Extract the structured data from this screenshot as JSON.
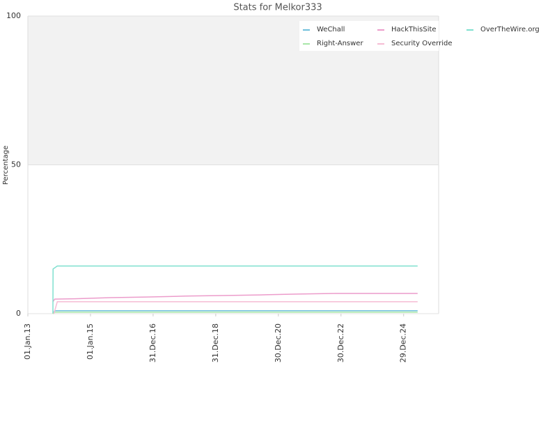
{
  "chart_data": {
    "type": "line",
    "title": "Stats for Melkor333",
    "y_label": "Percentage",
    "xlim": [
      "2013-01-01",
      "2026-02-10"
    ],
    "xticks": [
      {
        "value": "2013-01-01",
        "label": "01.Jan.13"
      },
      {
        "value": "2015-01-01",
        "label": "01.Jan.15"
      },
      {
        "value": "2016-12-31",
        "label": "31.Dec.16"
      },
      {
        "value": "2018-12-31",
        "label": "31.Dec.18"
      },
      {
        "value": "2020-12-30",
        "label": "30.Dec.20"
      },
      {
        "value": "2022-12-30",
        "label": "30.Dec.22"
      },
      {
        "value": "2024-12-29",
        "label": "29.Dec.24"
      }
    ],
    "ylim": [
      0,
      100
    ],
    "yticks": [
      0,
      50,
      100
    ],
    "series": [
      {
        "name": "WeChall",
        "color": "#6fbfdc",
        "x": [
          "2013-10-20",
          "2013-11-10",
          "2025-06-10"
        ],
        "values": [
          0,
          1,
          1
        ]
      },
      {
        "name": "HackThisSite",
        "color": "#ec9ccb",
        "x": [
          "2013-10-20",
          "2013-11-10",
          "2014-07-01",
          "2015-09-01",
          "2016-10-20",
          "2018-01-10",
          "2019-03-20",
          "2020-06-01",
          "2021-08-10",
          "2022-10-15",
          "2025-06-10"
        ],
        "values": [
          4,
          4.9,
          5,
          5.4,
          5.6,
          5.9,
          6.1,
          6.3,
          6.6,
          6.8,
          6.8
        ]
      },
      {
        "name": "OverTheWire.org",
        "color": "#7fe0cf",
        "x": [
          "2013-10-20",
          "2013-10-22",
          "2013-12-10",
          "2025-06-10"
        ],
        "values": [
          0,
          15,
          16,
          16
        ]
      },
      {
        "name": "Right-Answer",
        "color": "#a8e6a8",
        "x": [
          "2013-10-20",
          "2013-11-10",
          "2025-06-10"
        ],
        "values": [
          0,
          0.5,
          0.5
        ]
      },
      {
        "name": "Security Override",
        "color": "#f6bcd4",
        "x": [
          "2013-11-01",
          "2013-12-10",
          "2025-06-10"
        ],
        "values": [
          0,
          4,
          4
        ]
      }
    ]
  }
}
